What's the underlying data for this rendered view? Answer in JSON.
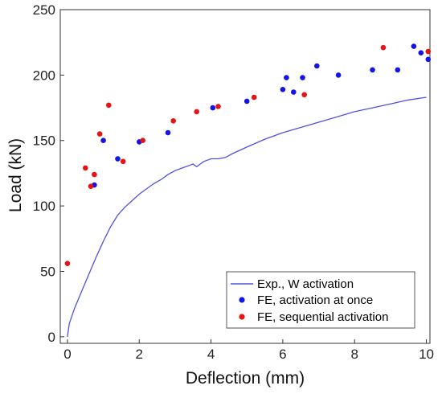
{
  "chart_data": {
    "type": "scatter",
    "xlabel": "Deflection (mm)",
    "ylabel": "Load (kN)",
    "xlim": [
      -0.2,
      10.1
    ],
    "ylim": [
      -5,
      250
    ],
    "xticks": [
      0,
      2,
      4,
      6,
      8,
      10
    ],
    "yticks": [
      0,
      50,
      100,
      150,
      200,
      250
    ],
    "grid": false,
    "legend_position": "bottom-right",
    "series": [
      {
        "name": "Exp., W activation",
        "kind": "line",
        "color": "#5050e0",
        "x": [
          0.0,
          0.05,
          0.2,
          0.4,
          0.6,
          0.8,
          1.0,
          1.2,
          1.4,
          1.6,
          1.8,
          2.0,
          2.2,
          2.4,
          2.6,
          2.8,
          3.0,
          3.2,
          3.4,
          3.5,
          3.6,
          3.7,
          3.8,
          3.9,
          4.0,
          4.2,
          4.4,
          4.6,
          5.0,
          5.5,
          6.0,
          6.5,
          7.0,
          7.5,
          8.0,
          8.5,
          9.0,
          9.5,
          10.0
        ],
        "y": [
          0,
          10,
          22,
          35,
          48,
          61,
          73,
          84,
          93,
          99,
          104,
          109,
          113,
          117,
          120,
          124,
          127,
          129,
          131,
          132,
          130,
          132,
          134,
          135,
          136,
          136,
          137,
          140,
          145,
          151,
          156,
          160,
          164,
          168,
          172,
          175,
          178,
          181,
          183
        ]
      },
      {
        "name": "FE, activation at once",
        "kind": "scatter",
        "color": "#1414e6",
        "x": [
          0.75,
          1.0,
          1.4,
          2.0,
          2.8,
          4.05,
          5.0,
          6.0,
          6.1,
          6.3,
          6.55,
          6.95,
          7.55,
          8.5,
          9.2,
          9.65,
          9.85,
          10.05
        ],
        "y": [
          116,
          150,
          136,
          149,
          156,
          175,
          180,
          189,
          198,
          187,
          198,
          207,
          200,
          204,
          204,
          222,
          217,
          212
        ]
      },
      {
        "name": "FE, sequential activation",
        "kind": "scatter",
        "color": "#e61414",
        "x": [
          0.0,
          0.5,
          0.65,
          0.75,
          0.9,
          1.15,
          1.55,
          2.1,
          2.95,
          3.6,
          4.2,
          5.2,
          6.6,
          8.8,
          10.05
        ],
        "y": [
          56,
          129,
          115,
          124,
          155,
          177,
          134,
          150,
          165,
          172,
          176,
          183,
          185,
          221,
          218
        ]
      }
    ]
  }
}
